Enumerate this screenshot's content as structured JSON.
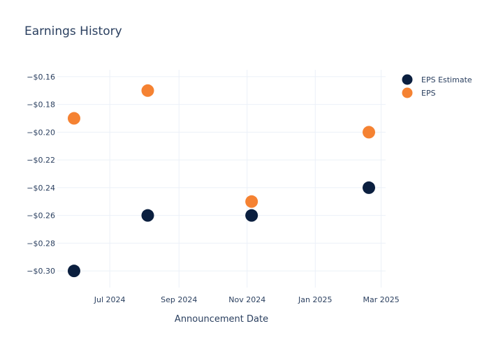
{
  "chart_data": {
    "type": "scatter",
    "title": "Earnings History",
    "xlabel": "Announcement Date",
    "ylabel": "",
    "x_ticks": [
      {
        "date": "2024-07-01",
        "label": "Jul 2024"
      },
      {
        "date": "2024-09-01",
        "label": "Sep 2024"
      },
      {
        "date": "2024-11-01",
        "label": "Nov 2024"
      },
      {
        "date": "2025-01-01",
        "label": "Jan 2025"
      },
      {
        "date": "2025-03-01",
        "label": "Mar 2025"
      }
    ],
    "y_ticks": [
      -0.16,
      -0.18,
      -0.2,
      -0.22,
      -0.24,
      -0.26,
      -0.28,
      -0.3
    ],
    "y_tick_labels": [
      "−$0.16",
      "−$0.18",
      "−$0.20",
      "−$0.22",
      "−$0.24",
      "−$0.26",
      "−$0.28",
      "−$0.30"
    ],
    "xlim": [
      "2024-05-15",
      "2025-03-05"
    ],
    "ylim": [
      -0.312,
      -0.155
    ],
    "grid": true,
    "legend_position": "top-right",
    "series": [
      {
        "name": "EPS Estimate",
        "color": "#0b1f3f",
        "x": [
          "2024-05-30",
          "2024-08-04",
          "2024-11-05",
          "2025-02-18"
        ],
        "y": [
          -0.3,
          -0.26,
          -0.26,
          -0.24
        ]
      },
      {
        "name": "EPS",
        "color": "#f58232",
        "x": [
          "2024-05-30",
          "2024-08-04",
          "2024-11-05",
          "2025-02-18"
        ],
        "y": [
          -0.19,
          -0.17,
          -0.25,
          -0.2
        ]
      }
    ]
  }
}
